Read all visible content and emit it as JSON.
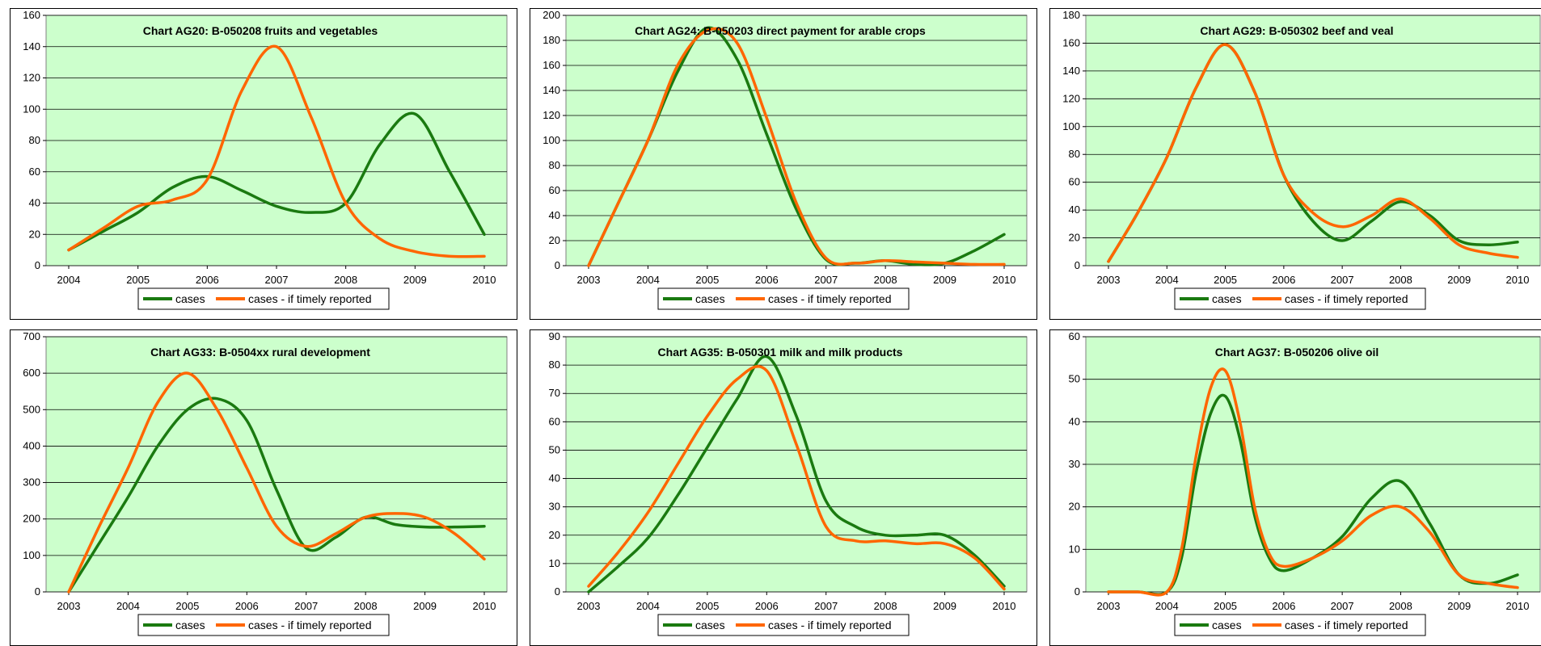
{
  "legend": {
    "series1": "cases",
    "series2": "cases - if timely reported"
  },
  "colors": {
    "series1": "#1a7a10",
    "series2": "#ff6600",
    "plot_bg": "#ccffcc",
    "grid": "#000000"
  },
  "chart_data": [
    {
      "type": "line",
      "title": "Chart AG20: B-050208 fruits and vegetables",
      "x": [
        2004,
        2004.5,
        2005,
        2005.5,
        2006,
        2006.5,
        2007,
        2007.5,
        2008,
        2008.5,
        2009,
        2009.5,
        2010
      ],
      "xticks": [
        "2004",
        "2005",
        "2006",
        "2007",
        "2008",
        "2009",
        "2010"
      ],
      "ylim": [
        0,
        160
      ],
      "ystep": 20,
      "series": [
        {
          "name": "cases",
          "values": [
            10,
            22,
            34,
            50,
            57,
            48,
            38,
            34,
            40,
            78,
            97,
            60,
            20
          ]
        },
        {
          "name": "cases - if timely reported",
          "values": [
            10,
            24,
            38,
            42,
            55,
            112,
            140,
            95,
            40,
            17,
            9,
            6,
            6
          ]
        }
      ]
    },
    {
      "type": "line",
      "title": "Chart AG24: B-050203 direct payment for arable crops",
      "x": [
        2003,
        2003.5,
        2004,
        2004.5,
        2005,
        2005.5,
        2006,
        2006.5,
        2007,
        2007.5,
        2008,
        2008.5,
        2009,
        2009.5,
        2010
      ],
      "xticks": [
        "2003",
        "2004",
        "2005",
        "2006",
        "2007",
        "2008",
        "2009",
        "2010"
      ],
      "ylim": [
        0,
        200
      ],
      "ystep": 20,
      "series": [
        {
          "name": "cases",
          "values": [
            0,
            50,
            100,
            155,
            190,
            165,
            105,
            45,
            5,
            2,
            4,
            1,
            2,
            12,
            25
          ]
        },
        {
          "name": "cases - if timely reported",
          "values": [
            0,
            50,
            100,
            160,
            188,
            178,
            118,
            50,
            6,
            2,
            4,
            3,
            2,
            1,
            1
          ]
        }
      ]
    },
    {
      "type": "line",
      "title": "Chart AG29: B-050302 beef and veal",
      "x": [
        2003,
        2003.5,
        2004,
        2004.5,
        2005,
        2005.5,
        2006,
        2006.5,
        2007,
        2007.5,
        2008,
        2008.5,
        2009,
        2009.5,
        2010
      ],
      "xticks": [
        "2003",
        "2004",
        "2005",
        "2006",
        "2007",
        "2008",
        "2009",
        "2010"
      ],
      "ylim": [
        0,
        180
      ],
      "ystep": 20,
      "series": [
        {
          "name": "cases",
          "values": [
            3,
            38,
            78,
            128,
            159,
            125,
            65,
            32,
            18,
            32,
            46,
            36,
            18,
            15,
            17
          ]
        },
        {
          "name": "cases - if timely reported",
          "values": [
            3,
            38,
            78,
            128,
            159,
            125,
            65,
            38,
            28,
            36,
            48,
            34,
            15,
            9,
            6
          ]
        }
      ]
    },
    {
      "type": "line",
      "title": "Chart AG33: B-0504xx rural development",
      "x": [
        2003,
        2003.5,
        2004,
        2004.5,
        2005,
        2005.5,
        2006,
        2006.5,
        2007,
        2007.5,
        2008,
        2008.5,
        2009,
        2009.5,
        2010
      ],
      "xticks": [
        "2003",
        "2004",
        "2005",
        "2006",
        "2007",
        "2008",
        "2009",
        "2010"
      ],
      "ylim": [
        0,
        700
      ],
      "ystep": 100,
      "series": [
        {
          "name": "cases",
          "values": [
            0,
            130,
            260,
            400,
            500,
            530,
            470,
            280,
            120,
            150,
            205,
            185,
            178,
            178,
            180
          ]
        },
        {
          "name": "cases - if timely reported",
          "values": [
            0,
            175,
            340,
            520,
            600,
            500,
            340,
            180,
            125,
            160,
            205,
            215,
            205,
            160,
            90
          ]
        }
      ]
    },
    {
      "type": "line",
      "title": "Chart AG35: B-050301 milk and milk products",
      "x": [
        2003,
        2003.5,
        2004,
        2004.5,
        2005,
        2005.5,
        2006,
        2006.5,
        2007,
        2007.5,
        2008,
        2008.5,
        2009,
        2009.5,
        2010
      ],
      "xticks": [
        "2003",
        "2004",
        "2005",
        "2006",
        "2007",
        "2008",
        "2009",
        "2010"
      ],
      "ylim": [
        0,
        90
      ],
      "ystep": 10,
      "series": [
        {
          "name": "cases",
          "values": [
            0,
            9,
            19,
            34,
            51,
            68,
            83,
            62,
            32,
            23,
            20,
            20,
            20,
            13,
            2
          ]
        },
        {
          "name": "cases - if timely reported",
          "values": [
            2,
            14,
            28,
            45,
            62,
            75,
            78,
            52,
            23,
            18,
            18,
            17,
            17,
            12,
            1
          ]
        }
      ]
    },
    {
      "type": "line",
      "title": "Chart AG37: B-050206 olive oil",
      "x": [
        2003,
        2003.5,
        2004,
        2004.25,
        2004.5,
        2004.75,
        2005,
        2005.25,
        2005.5,
        2005.75,
        2006,
        2006.5,
        2007,
        2007.5,
        2008,
        2008.5,
        2009,
        2009.5,
        2010
      ],
      "xticks": [
        "2003",
        "2004",
        "2005",
        "2006",
        "2007",
        "2008",
        "2009",
        "2010"
      ],
      "ylim": [
        0,
        60
      ],
      "ystep": 10,
      "series": [
        {
          "name": "cases",
          "values": [
            0,
            0,
            0,
            8,
            28,
            42,
            46,
            36,
            18,
            8,
            5,
            8,
            13,
            22,
            26,
            16,
            4,
            2,
            4
          ]
        },
        {
          "name": "cases - if timely reported",
          "values": [
            0,
            0,
            0,
            10,
            32,
            48,
            52,
            40,
            20,
            9,
            6,
            8,
            12,
            18,
            20,
            14,
            4,
            2,
            1
          ]
        }
      ]
    }
  ]
}
